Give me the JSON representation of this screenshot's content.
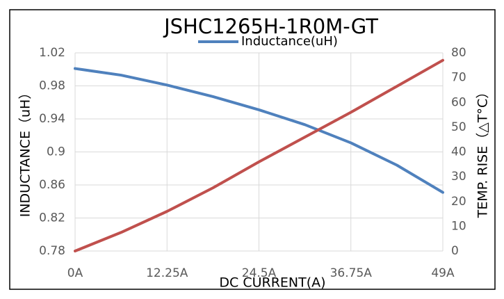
{
  "chart_data": {
    "type": "line",
    "title": "JSHC1265H-1R0M-GT",
    "x_label": "DC  CURRENT(A)",
    "y_label": "INDUCTANCE（uH）",
    "y2_label": "TEMP. RISE（△T°C）",
    "x": [
      0,
      6.125,
      12.25,
      18.375,
      24.5,
      30.625,
      36.75,
      42.875,
      49
    ],
    "xlim": [
      0,
      49
    ],
    "xticks": [
      {
        "value": 0,
        "label": "0A"
      },
      {
        "value": 12.25,
        "label": "12.25A"
      },
      {
        "value": 24.5,
        "label": "24.5A"
      },
      {
        "value": 36.75,
        "label": "36.75A"
      },
      {
        "value": 49,
        "label": "49A"
      }
    ],
    "ylim": [
      0.78,
      1.02
    ],
    "yticks": [
      0.78,
      0.82,
      0.86,
      0.9,
      0.94,
      0.98,
      1.02
    ],
    "y2lim": [
      0,
      80
    ],
    "y2ticks": [
      0,
      10,
      20,
      30,
      40,
      50,
      60,
      70,
      80
    ],
    "grid": true,
    "legend": "top",
    "series": [
      {
        "name": "Inductance(uH)",
        "color": "#4f81bd",
        "values": [
          1.001,
          0.993,
          0.981,
          0.967,
          0.951,
          0.933,
          0.911,
          0.884,
          0.851
        ]
      },
      {
        "color": "#c0504d",
        "axis": "y2",
        "values": [
          0,
          7.5,
          16,
          25.5,
          36,
          46,
          56,
          66.5,
          77
        ]
      }
    ]
  }
}
